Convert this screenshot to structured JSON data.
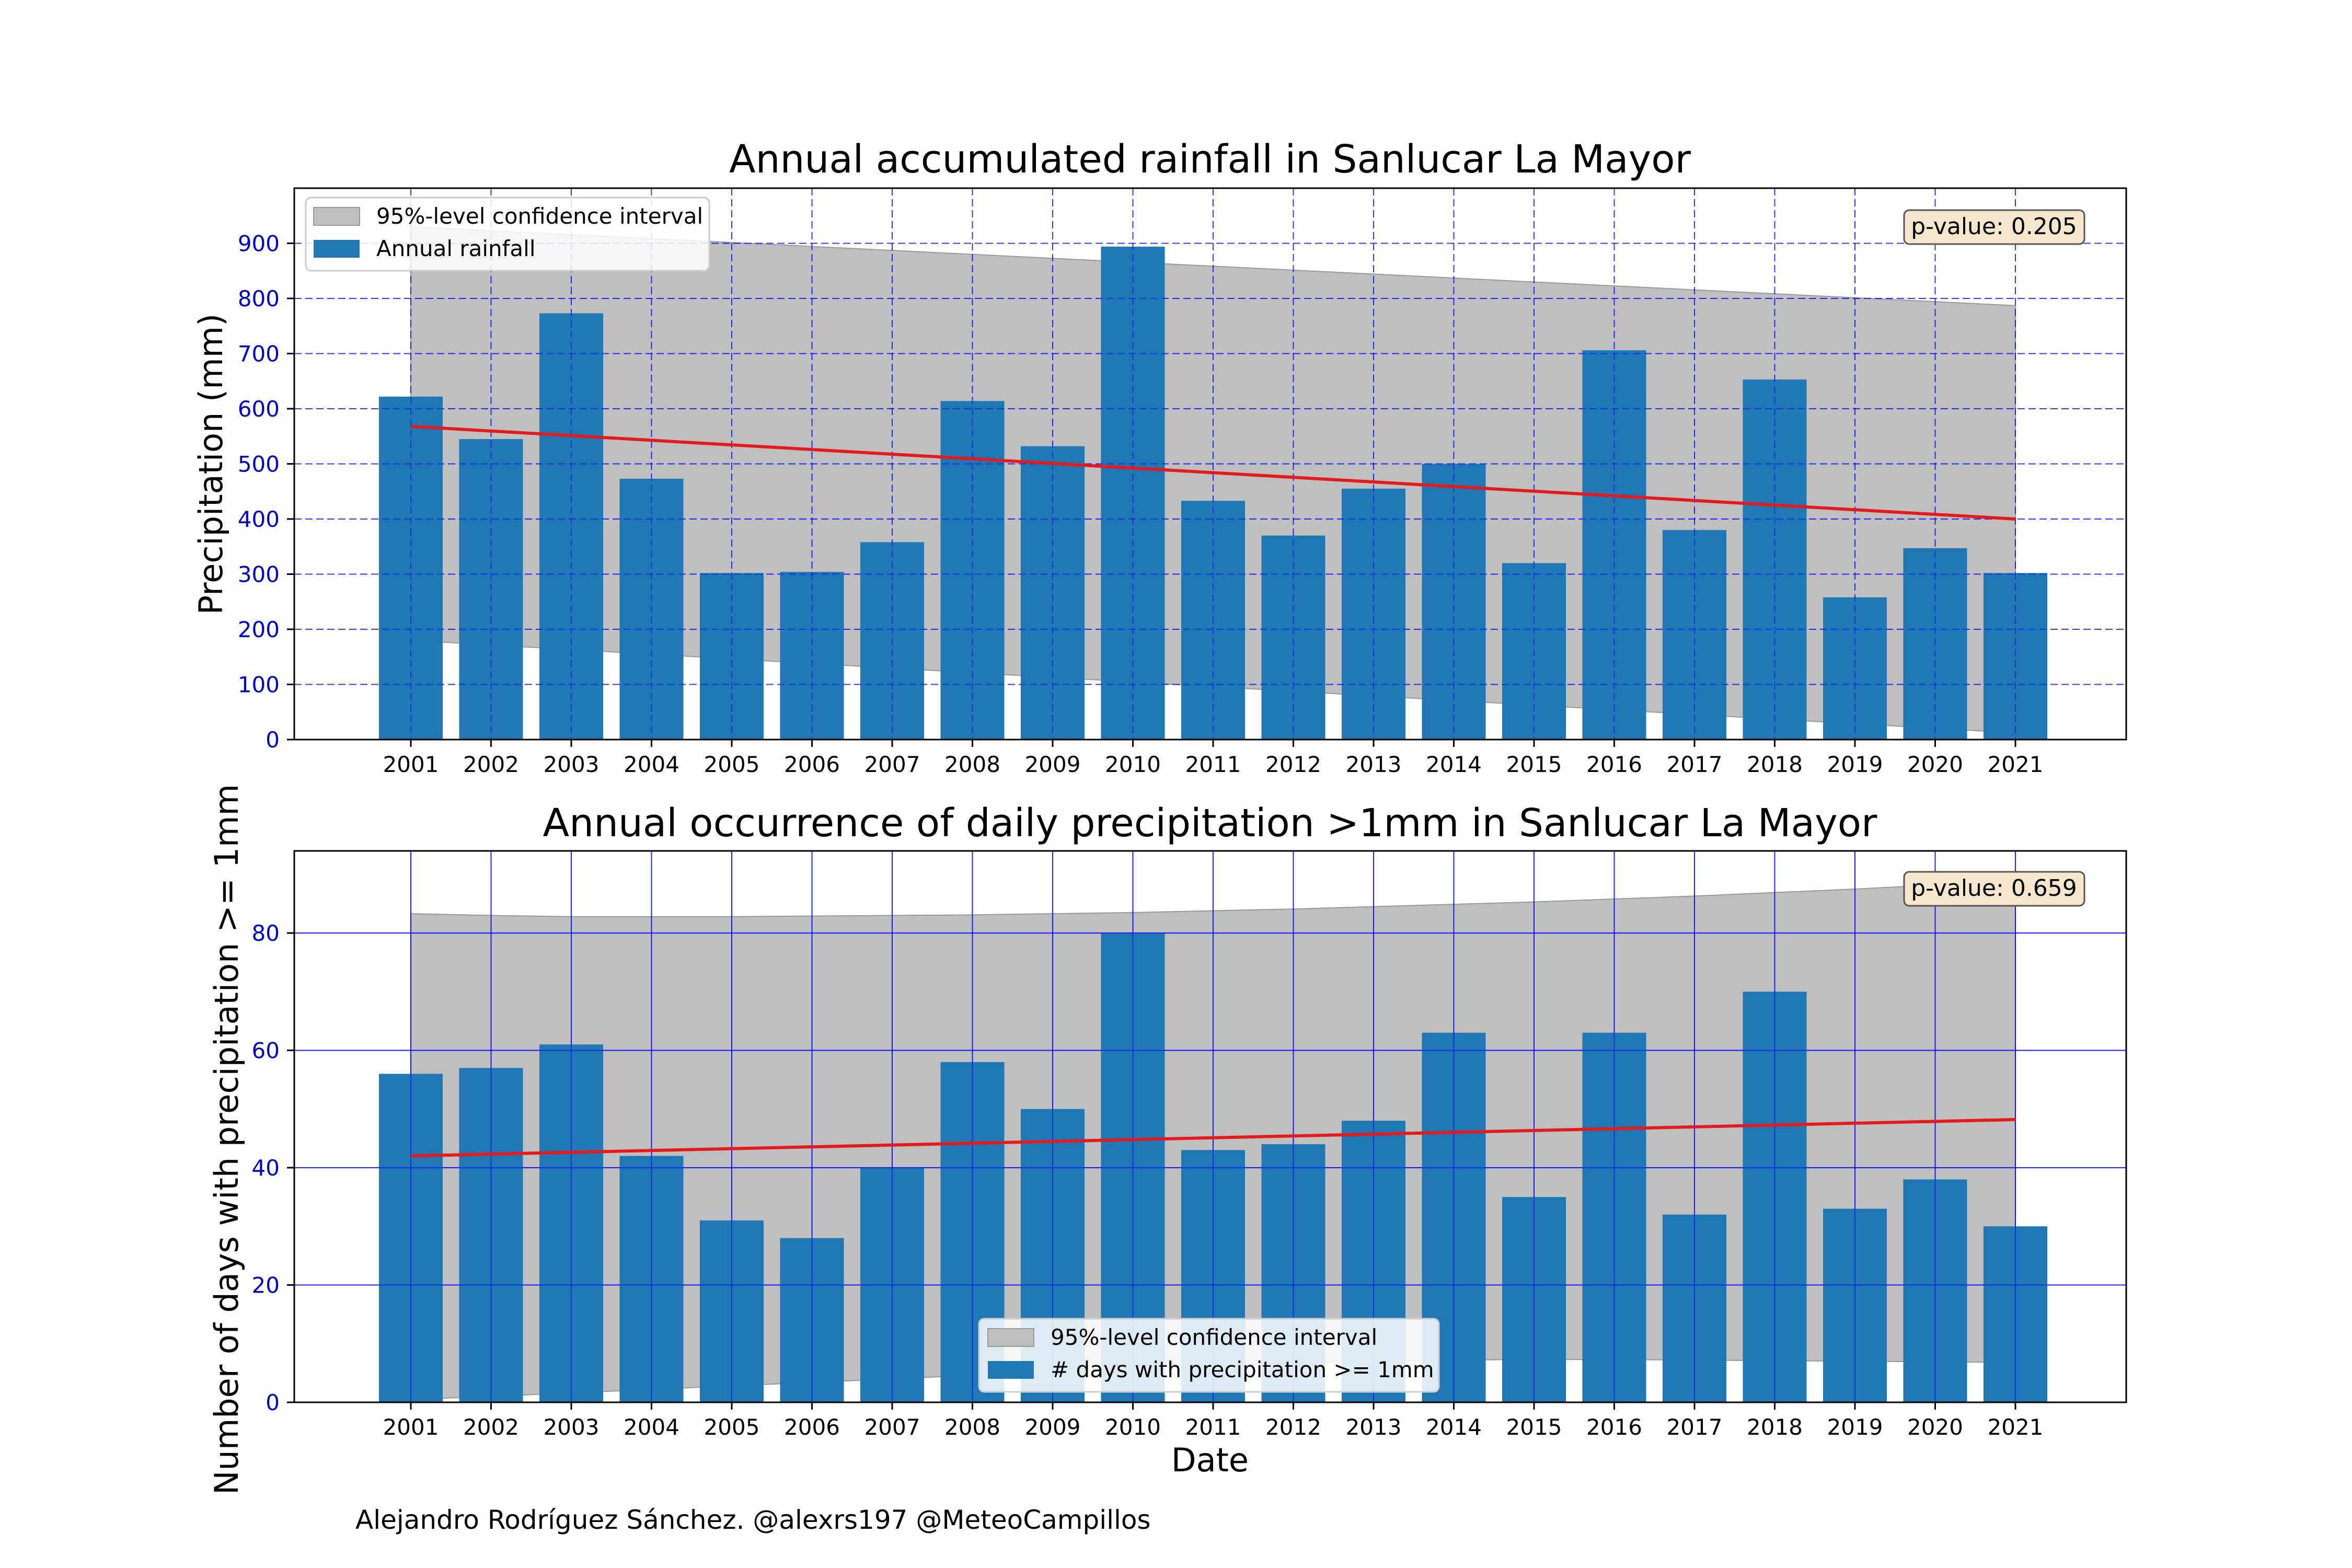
{
  "chart_data": [
    {
      "type": "bar",
      "title": "Annual accumulated rainfall in Sanlucar La Mayor",
      "xlabel": "",
      "ylabel": "Precipitation (mm)",
      "ylim": [
        0,
        1000
      ],
      "yticks": [
        0,
        100,
        200,
        300,
        400,
        500,
        600,
        700,
        800,
        900
      ],
      "grid": "dashed",
      "categories": [
        "2001",
        "2002",
        "2003",
        "2004",
        "2005",
        "2006",
        "2007",
        "2008",
        "2009",
        "2010",
        "2011",
        "2012",
        "2013",
        "2014",
        "2015",
        "2016",
        "2017",
        "2018",
        "2019",
        "2020",
        "2021"
      ],
      "series": [
        {
          "name": "Annual rainfall",
          "values": [
            622,
            545,
            773,
            473,
            302,
            304,
            358,
            614,
            532,
            894,
            433,
            370,
            455,
            500,
            320,
            706,
            380,
            653,
            258,
            347,
            302
          ]
        }
      ],
      "trend": {
        "start": 568,
        "end": 400,
        "color": "#e41a1c"
      },
      "confidence_band": {
        "name": "95%-level confidence interval",
        "upper_start": 930,
        "upper_end": 787,
        "lower_start": 180,
        "lower_end": 12
      },
      "annotation": "p-value: 0.205",
      "legend_position": "top-left"
    },
    {
      "type": "bar",
      "title": "Annual occurrence of daily precipitation >1mm in Sanlucar La Mayor",
      "xlabel": "Date",
      "ylabel": "Number of days with precipitation >= 1mm",
      "ylim": [
        0,
        94
      ],
      "yticks": [
        0,
        20,
        40,
        60,
        80
      ],
      "grid": "solid",
      "categories": [
        "2001",
        "2002",
        "2003",
        "2004",
        "2005",
        "2006",
        "2007",
        "2008",
        "2009",
        "2010",
        "2011",
        "2012",
        "2013",
        "2014",
        "2015",
        "2016",
        "2017",
        "2018",
        "2019",
        "2020",
        "2021"
      ],
      "series": [
        {
          "name": "# days with precipitation >= 1mm",
          "values": [
            56,
            57,
            61,
            42,
            31,
            28,
            40,
            58,
            50,
            80,
            43,
            44,
            48,
            63,
            35,
            63,
            32,
            70,
            33,
            38,
            30
          ]
        }
      ],
      "trend": {
        "start": 42,
        "end": 48.2,
        "color": "#e41a1c"
      },
      "confidence_band": {
        "name": "95%-level confidence interval",
        "upper": [
          83.3,
          83.0,
          82.8,
          82.8,
          82.8,
          82.9,
          83.0,
          83.1,
          83.3,
          83.5,
          83.8,
          84.1,
          84.5,
          84.9,
          85.3,
          85.8,
          86.3,
          86.9,
          87.5,
          88.2,
          88.9
        ],
        "lower": [
          0.5,
          1.0,
          1.6,
          2.2,
          2.8,
          3.4,
          4.0,
          4.6,
          5.2,
          5.8,
          6.3,
          6.7,
          7.0,
          7.2,
          7.3,
          7.3,
          7.2,
          7.1,
          7.0,
          6.9,
          6.8
        ]
      },
      "annotation": "p-value: 0.659",
      "legend_position": "lower-center"
    }
  ],
  "footer": "Alejandro Rodríguez Sánchez. @alexrs197 @MeteoCampillos",
  "colors": {
    "bar": "#1f77b4",
    "band": "#bfbfbf",
    "trend": "#e41a1c",
    "grid": "#0000ff",
    "tick_y": "#0000cc",
    "annotation_bg": "#f5e6cc"
  }
}
